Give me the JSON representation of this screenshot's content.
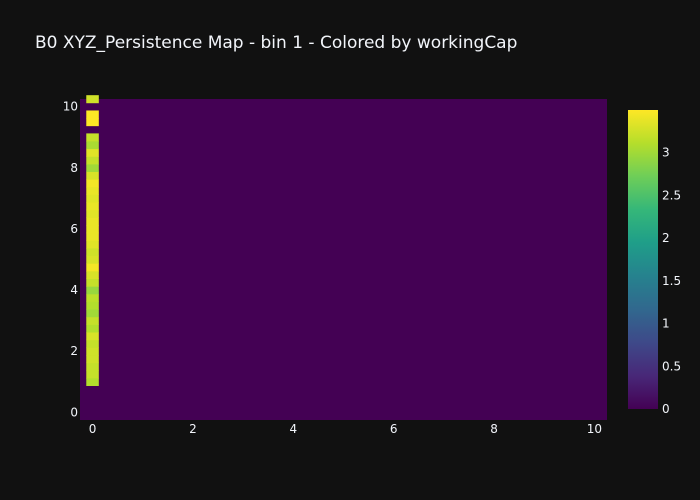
{
  "chart_data": {
    "type": "heatmap",
    "title": "B0 XYZ_Persistence Map - bin 1 - Colored by workingCap",
    "xlabel": "",
    "ylabel": "",
    "xlim": [
      -0.25,
      10.25
    ],
    "ylim": [
      -0.25,
      10.25
    ],
    "x_ticks": [
      "0",
      "2",
      "4",
      "6",
      "8",
      "10"
    ],
    "y_ticks": [
      "0",
      "2",
      "4",
      "6",
      "8",
      "10"
    ],
    "cell_size": 0.25,
    "background_value": 0,
    "column_x": 0,
    "column_cells": [
      {
        "y": 1.0,
        "value": 3.1
      },
      {
        "y": 1.25,
        "value": 3.2
      },
      {
        "y": 1.5,
        "value": 3.2
      },
      {
        "y": 1.75,
        "value": 3.25
      },
      {
        "y": 2.0,
        "value": 3.25
      },
      {
        "y": 2.25,
        "value": 3.2
      },
      {
        "y": 2.5,
        "value": 3.3
      },
      {
        "y": 2.75,
        "value": 3.1
      },
      {
        "y": 3.0,
        "value": 3.2
      },
      {
        "y": 3.25,
        "value": 3.0
      },
      {
        "y": 3.5,
        "value": 3.1
      },
      {
        "y": 3.75,
        "value": 3.15
      },
      {
        "y": 4.0,
        "value": 2.95
      },
      {
        "y": 4.25,
        "value": 3.2
      },
      {
        "y": 4.5,
        "value": 3.3
      },
      {
        "y": 4.75,
        "value": 3.45
      },
      {
        "y": 5.0,
        "value": 3.3
      },
      {
        "y": 5.25,
        "value": 3.25
      },
      {
        "y": 5.5,
        "value": 3.35
      },
      {
        "y": 5.75,
        "value": 3.4
      },
      {
        "y": 6.0,
        "value": 3.4
      },
      {
        "y": 6.25,
        "value": 3.4
      },
      {
        "y": 6.5,
        "value": 3.35
      },
      {
        "y": 6.75,
        "value": 3.4
      },
      {
        "y": 7.0,
        "value": 3.35
      },
      {
        "y": 7.25,
        "value": 3.4
      },
      {
        "y": 7.5,
        "value": 3.45
      },
      {
        "y": 7.75,
        "value": 3.3
      },
      {
        "y": 8.0,
        "value": 3.0
      },
      {
        "y": 8.25,
        "value": 3.2
      },
      {
        "y": 8.5,
        "value": 3.35
      },
      {
        "y": 8.75,
        "value": 3.05
      },
      {
        "y": 9.0,
        "value": 3.2
      },
      {
        "y": 9.5,
        "value": 3.5
      },
      {
        "y": 9.75,
        "value": 3.5
      },
      {
        "y": 10.25,
        "value": 3.25
      }
    ],
    "colorscale": {
      "name": "viridis",
      "range": [
        0,
        3.5
      ],
      "ticks": [
        "0",
        "0.5",
        "1",
        "1.5",
        "2",
        "2.5",
        "3"
      ],
      "stops": [
        "#440154",
        "#482878",
        "#3e4989",
        "#31688e",
        "#26828e",
        "#1f9e89",
        "#35b779",
        "#6ece58",
        "#b5de2b",
        "#fde725"
      ]
    }
  }
}
